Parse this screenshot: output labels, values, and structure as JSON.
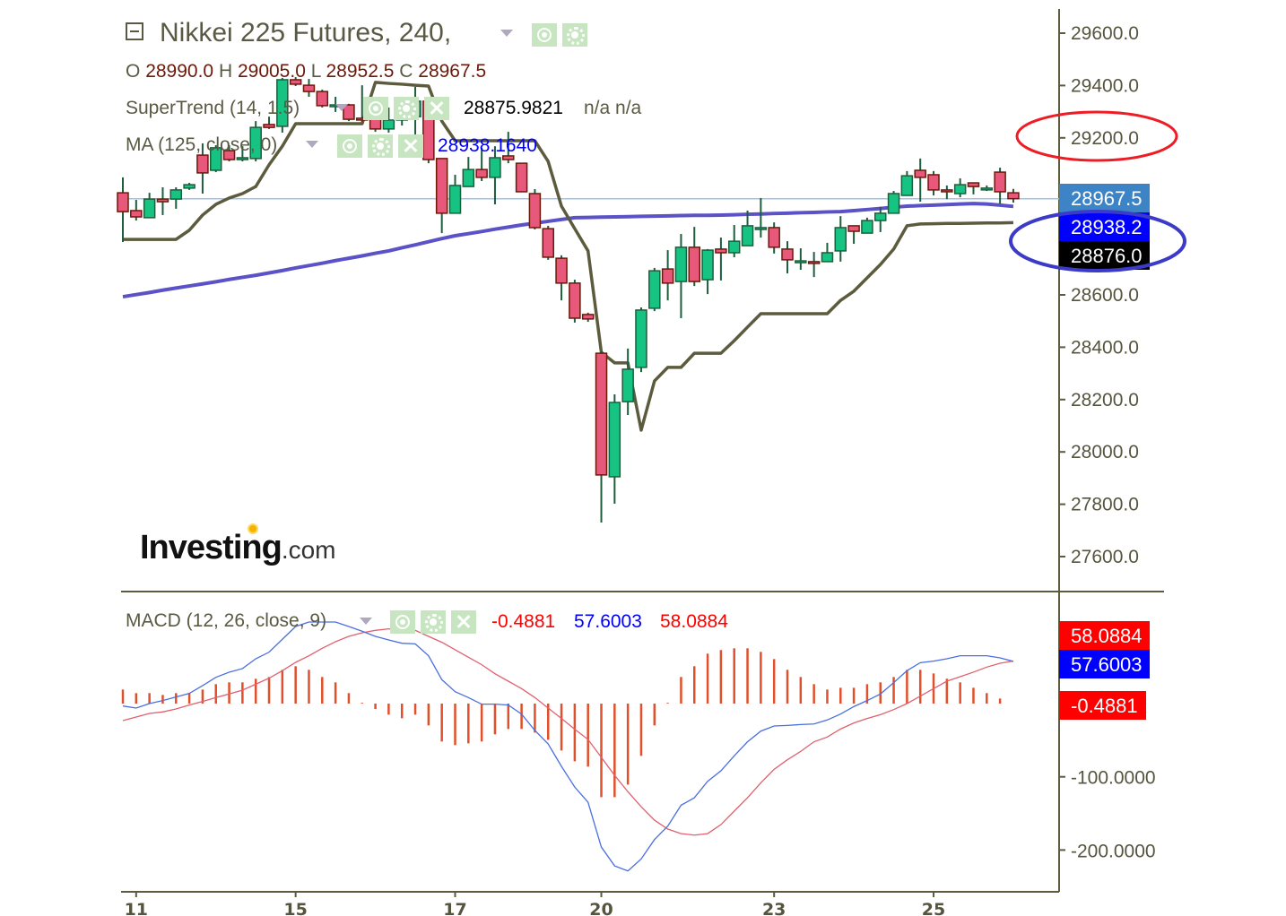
{
  "header": {
    "title": "Nikkei 225 Futures, 240,",
    "ohlc": {
      "o_label": "O",
      "o": "28990.0",
      "h_label": "H",
      "h": "29005.0",
      "l_label": "L",
      "l": "28952.5",
      "c_label": "C",
      "c": "28967.5"
    }
  },
  "indicators": {
    "supertrend": {
      "label": "SuperTrend (14, 1.5)",
      "value": "28875.9821",
      "extra": "n/a n/a"
    },
    "ma": {
      "label": "MA (125, close, 0)",
      "value": "28938.1640"
    },
    "macd": {
      "label": "MACD (12, 26, close, 9)",
      "hist": "-0.4881",
      "macd": "57.6003",
      "signal": "58.0884"
    }
  },
  "icons": {
    "eye": "eye-icon",
    "gear": "gear-icon",
    "close": "close-icon",
    "collapse": "collapse-icon",
    "dropdown": "chevron-down-icon"
  },
  "logo": {
    "text": "Investing",
    "suffix": ".com"
  },
  "colors": {
    "up": "#17c383",
    "up_border": "#1d5e3c",
    "down": "#e8587a",
    "down_border": "#6b1a0a",
    "supertrend": "#5c5b3e",
    "ma": "#5a52c6",
    "macd": "#4a6fe0",
    "signal": "#e0606e",
    "hist": "#e0502a",
    "last_price_bg": "#3d84c6",
    "ma_badge_bg": "#0000ff",
    "st_badge_bg": "#000000",
    "macd_signal_bg": "#ff0000",
    "macd_line_bg": "#0000ff",
    "macd_hist_bg": "#ff0000",
    "annotation_red": "#ee1c24",
    "annotation_blue": "#3b3bc8"
  },
  "chart_data": {
    "type": "candlestick",
    "price_axis": {
      "ticks": [
        "29600.0",
        "29400.0",
        "29200.0",
        "28600.0",
        "28400.0",
        "28200.0",
        "28000.0",
        "27800.0",
        "27600.0"
      ],
      "tick_values": [
        29600,
        29400,
        29200,
        28600,
        28400,
        28200,
        28000,
        27800,
        27600
      ]
    },
    "price_badges": [
      {
        "text": "28967.5",
        "value": 28967.5,
        "bg": "last_price_bg"
      },
      {
        "text": "28938.2",
        "value": 28938.2,
        "bg": "ma_badge_bg"
      },
      {
        "text": "28876.0",
        "value": 28876.0,
        "bg": "st_badge_bg"
      }
    ],
    "x_axis": {
      "ticks": [
        {
          "label": "11",
          "index": 1
        },
        {
          "label": "15",
          "index": 13
        },
        {
          "label": "17",
          "index": 25
        },
        {
          "label": "20",
          "index": 36
        },
        {
          "label": "23",
          "index": 49
        },
        {
          "label": "25",
          "index": 61
        }
      ]
    },
    "candles_ohlc": [
      [
        28990,
        29049,
        28802,
        28918
      ],
      [
        28922,
        28963,
        28884,
        28898
      ],
      [
        28895,
        28990,
        28895,
        28966
      ],
      [
        28966,
        29011,
        28905,
        28956
      ],
      [
        28966,
        29011,
        28929,
        29001
      ],
      [
        29008,
        29028,
        29001,
        29021
      ],
      [
        29134,
        29179,
        28987,
        29066
      ],
      [
        29076,
        29172,
        29069,
        29162
      ],
      [
        29151,
        29172,
        29110,
        29117
      ],
      [
        29117,
        29168,
        29110,
        29124
      ],
      [
        29121,
        29264,
        29110,
        29240
      ],
      [
        29251,
        29281,
        29234,
        29240
      ],
      [
        29244,
        29429,
        29220,
        29422
      ],
      [
        29422,
        29432,
        29398,
        29405
      ],
      [
        29401,
        29425,
        29357,
        29377
      ],
      [
        29377,
        29384,
        29316,
        29323
      ],
      [
        29323,
        29357,
        29299,
        29326
      ],
      [
        29326,
        29330,
        29264,
        29271
      ],
      [
        29275,
        29401,
        29261,
        29268
      ],
      [
        29271,
        29288,
        29223,
        29234
      ],
      [
        29234,
        29316,
        29220,
        29268
      ],
      [
        29268,
        29302,
        29247,
        29275
      ],
      [
        29281,
        29395,
        29127,
        29340
      ],
      [
        29340,
        29350,
        29103,
        29117
      ],
      [
        29121,
        29121,
        28836,
        28912
      ],
      [
        28912,
        29059,
        28912,
        29018
      ],
      [
        29014,
        29127,
        29014,
        29079
      ],
      [
        29079,
        29162,
        29035,
        29049
      ],
      [
        29049,
        29168,
        28946,
        29124
      ],
      [
        29131,
        29223,
        29103,
        29117
      ],
      [
        29103,
        29103,
        28994,
        28994
      ],
      [
        28987,
        29004,
        28850,
        28857
      ],
      [
        28853,
        28864,
        28734,
        28744
      ],
      [
        28740,
        28751,
        28579,
        28645
      ],
      [
        28645,
        28658,
        28494,
        28511
      ],
      [
        28525,
        28532,
        28497,
        28508
      ],
      [
        28377,
        28384,
        27730,
        27912
      ],
      [
        27905,
        28220,
        27802,
        28189
      ],
      [
        28192,
        28395,
        28141,
        28316
      ],
      [
        28323,
        28552,
        28305,
        28542
      ],
      [
        28549,
        28703,
        28538,
        28692
      ],
      [
        28699,
        28771,
        28579,
        28645
      ],
      [
        28651,
        28833,
        28511,
        28782
      ],
      [
        28782,
        28860,
        28634,
        28651
      ],
      [
        28658,
        28775,
        28603,
        28771
      ],
      [
        28775,
        28819,
        28655,
        28761
      ],
      [
        28761,
        28867,
        28744,
        28805
      ],
      [
        28788,
        28922,
        28788,
        28864
      ],
      [
        28850,
        28970,
        28819,
        28857
      ],
      [
        28857,
        28877,
        28758,
        28782
      ],
      [
        28775,
        28805,
        28682,
        28734
      ],
      [
        28727,
        28778,
        28696,
        28730
      ],
      [
        28727,
        28764,
        28668,
        28723
      ],
      [
        28727,
        28799,
        28727,
        28761
      ],
      [
        28768,
        28901,
        28727,
        28857
      ],
      [
        28864,
        28864,
        28795,
        28843
      ],
      [
        28836,
        28895,
        28836,
        28884
      ],
      [
        28884,
        28936,
        28840,
        28912
      ],
      [
        28912,
        28997,
        28912,
        28987
      ],
      [
        28980,
        29073,
        28980,
        29055
      ],
      [
        29076,
        29121,
        28956,
        29049
      ],
      [
        29059,
        29073,
        28980,
        29001
      ],
      [
        29001,
        29018,
        28966,
        28994
      ],
      [
        28987,
        29045,
        28973,
        29021
      ],
      [
        29028,
        29028,
        28984,
        29014
      ],
      [
        29008,
        29018,
        28997,
        29008
      ],
      [
        29069,
        29086,
        28949,
        28994
      ],
      [
        28990,
        29005,
        28952.5,
        28967.5
      ]
    ],
    "supertrend": [
      28812,
      28812,
      28812,
      28812,
      28812,
      28847,
      28905,
      28946,
      28970,
      28987,
      29014,
      29097,
      29168,
      29254,
      29254,
      29254,
      29254,
      29254,
      29254,
      29412,
      29408,
      29405,
      29401,
      29398,
      29264,
      29189,
      29189,
      29189,
      29189,
      29189,
      29189,
      29189,
      29110,
      28939,
      28853,
      28768,
      28381,
      28340,
      28340,
      28083,
      28271,
      28323,
      28323,
      28377,
      28377,
      28377,
      28425,
      28477,
      28528,
      28528,
      28528,
      28528,
      28528,
      28528,
      28579,
      28614,
      28665,
      28716,
      28775,
      28864,
      28871,
      28872,
      28873,
      28873,
      28874,
      28875,
      28875,
      28876
    ],
    "ma125": [
      28593,
      28601,
      28609,
      28618,
      28626,
      28634,
      28642,
      28650,
      28659,
      28667,
      28675,
      28684,
      28693,
      28703,
      28712,
      28721,
      28731,
      28740,
      28749,
      28759,
      28768,
      28780,
      28791,
      28803,
      28815,
      28826,
      28834,
      28842,
      28851,
      28859,
      28867,
      28874,
      28881,
      28888,
      28895,
      28896,
      28897,
      28898,
      28899,
      28900,
      28901,
      28902,
      28903,
      28904,
      28904,
      28905,
      28906,
      28908,
      28909,
      28911,
      28912,
      28914,
      28915,
      28917,
      28918,
      28922,
      28926,
      28930,
      28935,
      28939,
      28941,
      28943,
      28945,
      28947,
      28949,
      28947,
      28943,
      28938
    ],
    "macd_axis": {
      "ticks": [
        "-100.0000",
        "-200.0000"
      ],
      "tick_values": [
        -100,
        -200
      ]
    },
    "macd_badges": [
      {
        "text": "58.0884",
        "value": 58.0884,
        "bg": "macd_signal_bg"
      },
      {
        "text": "57.6003",
        "value": 57.6003,
        "bg": "macd_line_bg"
      },
      {
        "text": "-0.4881",
        "value": -0.4881,
        "bg": "macd_hist_bg"
      }
    ],
    "macd_line": [
      -3.3,
      -6.1,
      0,
      4.1,
      9,
      13.9,
      24.5,
      35.9,
      42.9,
      47.8,
      61.2,
      70.2,
      87.8,
      105.3,
      111.4,
      111.4,
      111.4,
      105.3,
      98.8,
      91.8,
      86.9,
      82.4,
      81.6,
      65.3,
      32.7,
      16.3,
      8.2,
      -0.8,
      -0.8,
      -2,
      -14.3,
      -36.7,
      -55.1,
      -85.7,
      -114,
      -134.7,
      -195.9,
      -221.6,
      -228.6,
      -212.2,
      -185.7,
      -167.3,
      -138.8,
      -128.6,
      -106.1,
      -91.8,
      -71.4,
      -52.2,
      -37.6,
      -30.6,
      -29.8,
      -28.6,
      -27.8,
      -22.4,
      -14.3,
      -4.1,
      4.1,
      13.1,
      28.6,
      44.9,
      55.9,
      58,
      61.2,
      65.3,
      65.3,
      65.3,
      62.4,
      57.6003
    ],
    "signal_line": [
      -23.3,
      -18.4,
      -13.5,
      -11.4,
      -7.3,
      -2,
      2.9,
      8.2,
      13.1,
      18.4,
      26.5,
      34.7,
      44.9,
      56.3,
      65.3,
      75.5,
      84.5,
      91.8,
      96.7,
      100,
      102,
      102,
      100,
      91.8,
      83.7,
      73.5,
      63.3,
      53.1,
      40.8,
      30.6,
      20.4,
      8.2,
      -6.1,
      -20.4,
      -35,
      -49,
      -73.5,
      -98,
      -120.4,
      -140.8,
      -159.2,
      -171.4,
      -177.6,
      -179.6,
      -177.6,
      -165.3,
      -146.9,
      -128.6,
      -108.2,
      -89.8,
      -76.7,
      -65.3,
      -52.2,
      -45.7,
      -34.7,
      -26.5,
      -20.4,
      -15.1,
      -8.2,
      0,
      10.2,
      20.4,
      30.6,
      36.7,
      42.9,
      49.8,
      55.1,
      58.0884
    ],
    "histogram": [
      19.2,
      14.3,
      14.3,
      11.8,
      14.3,
      14.3,
      19.2,
      26.5,
      29,
      29,
      33.9,
      36.3,
      46.1,
      51,
      46.1,
      36.3,
      29,
      14.3,
      1,
      -7.3,
      -15.1,
      -20,
      -15.1,
      -29.8,
      -51.8,
      -56.7,
      -54.3,
      -51.8,
      -42,
      -34.7,
      -34.7,
      -39.6,
      -49.4,
      -64.1,
      -78.8,
      -86.1,
      -127.8,
      -127.8,
      -110.6,
      -71.4,
      -29.8,
      1,
      36.3,
      51,
      68.2,
      73.1,
      75.5,
      75.5,
      70.6,
      60.8,
      46.1,
      36.3,
      26.5,
      19.2,
      21.6,
      21.6,
      26.5,
      29,
      36.3,
      46.1,
      46.1,
      41.2,
      33.9,
      29,
      21.6,
      14.3,
      6.9,
      -0.4881
    ]
  }
}
